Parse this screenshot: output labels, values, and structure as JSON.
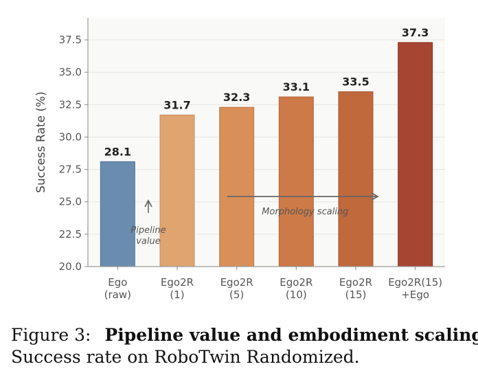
{
  "chart_data": {
    "type": "bar",
    "categories": [
      [
        "Ego",
        "(raw)"
      ],
      [
        "Ego2R",
        "(1)"
      ],
      [
        "Ego2R",
        "(5)"
      ],
      [
        "Ego2R",
        "(10)"
      ],
      [
        "Ego2R",
        "(15)"
      ],
      [
        "Ego2R(15)",
        "+Ego"
      ]
    ],
    "values": [
      28.1,
      31.7,
      32.3,
      33.1,
      33.5,
      37.3
    ],
    "value_labels": [
      "28.1",
      "31.7",
      "32.3",
      "33.1",
      "33.5",
      "37.3"
    ],
    "bar_colors": [
      "#6a8caf",
      "#e0a470",
      "#d98f58",
      "#cd7a48",
      "#c0693d",
      "#a64532"
    ],
    "bar_edge_colors": [
      "#4f6f92",
      "#c98c5c",
      "#c07a48",
      "#b4683c",
      "#a65832",
      "#8c3628"
    ],
    "ylabel": "Success Rate (%)",
    "xlabel": "",
    "ylim": [
      20.0,
      39.2
    ],
    "yticks": [
      20.0,
      22.5,
      25.0,
      27.5,
      30.0,
      32.5,
      35.0,
      37.5
    ],
    "ytick_labels": [
      "20.0",
      "22.5",
      "25.0",
      "27.5",
      "30.0",
      "32.5",
      "35.0",
      "37.5"
    ],
    "grid": "horizontal",
    "background_color": "#f9f9f7",
    "annotations": {
      "pipeline": {
        "lines": [
          "Pipeline",
          "value"
        ],
        "arrow": "up",
        "category_index": 1
      },
      "morphology": {
        "text": "Morphology scaling",
        "arrow": "right",
        "from_category_index": 2,
        "to_category_index": 4
      }
    }
  },
  "caption": {
    "label": "Figure 3:",
    "title": "Pipeline value and embodiment scaling.",
    "text": "Success rate on RoboTwin Randomized."
  }
}
